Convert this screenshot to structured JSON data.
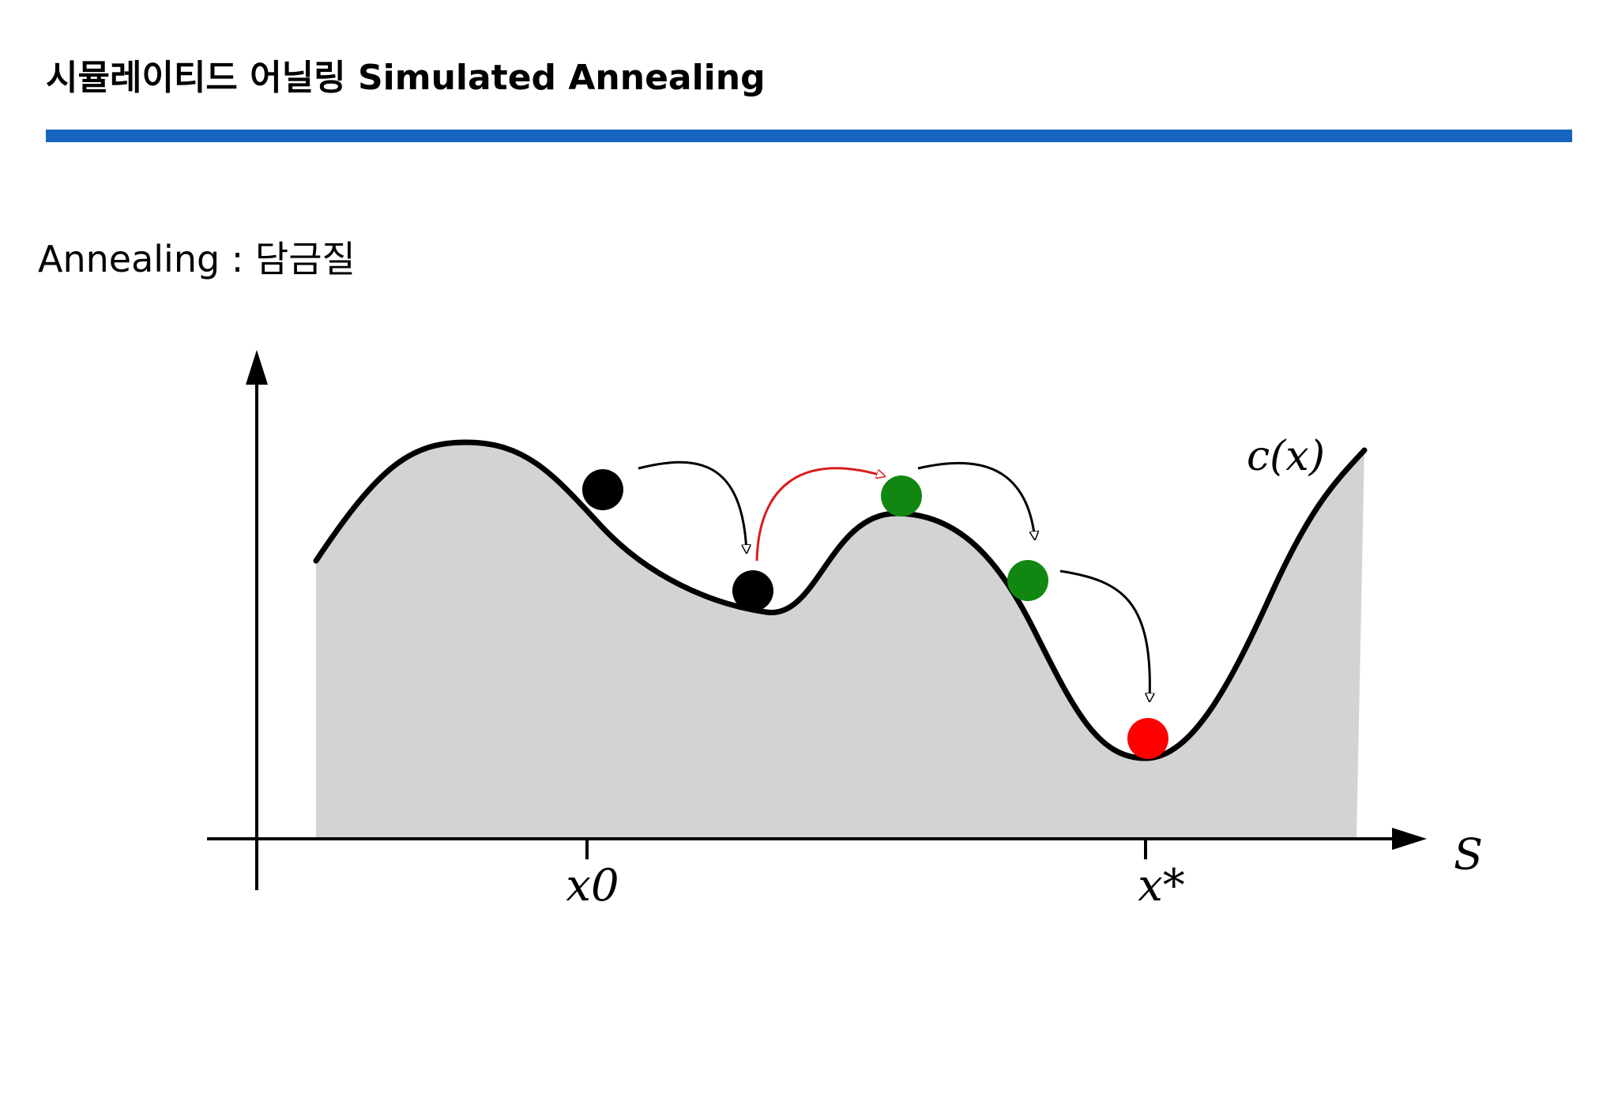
{
  "header": {
    "title": "시뮬레이티드 어닐링 Simulated Annealing"
  },
  "subtitle": "Annealing : 담금질",
  "diagram": {
    "curve_label": "c(x)",
    "axis_label": "S",
    "tick_x0": "x0",
    "tick_xstar": "x*"
  },
  "colors": {
    "rule": "#1565C0",
    "fill": "#D3D3D3",
    "curve": "#000000",
    "ball_black": "#000000",
    "ball_green": "#118711",
    "ball_red": "#FF0000",
    "arrow_red": "#D91E1E"
  }
}
